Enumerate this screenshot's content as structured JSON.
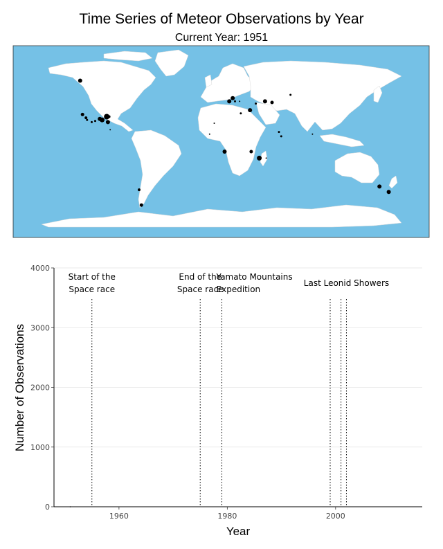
{
  "title": "Time Series of Meteor Observations by Year",
  "subtitle": "Current Year: 1951",
  "colors": {
    "ocean": "#75c1e6",
    "land": "#ffffff",
    "point": "#000000",
    "grid": "#e3e3e3"
  },
  "chart_data": [
    {
      "type": "scatter",
      "map": "world",
      "points": [
        {
          "lon": -122,
          "lat": 71,
          "size": 3
        },
        {
          "lon": -120,
          "lat": 40,
          "size": 2.5
        },
        {
          "lon": -117,
          "lat": 37,
          "size": 2
        },
        {
          "lon": -116,
          "lat": 35,
          "size": 1.5
        },
        {
          "lon": -112,
          "lat": 33,
          "size": 1.5
        },
        {
          "lon": -109,
          "lat": 34,
          "size": 1.5
        },
        {
          "lon": -105,
          "lat": 36,
          "size": 3
        },
        {
          "lon": -103,
          "lat": 35,
          "size": 3.5
        },
        {
          "lon": -99,
          "lat": 38,
          "size": 4
        },
        {
          "lon": -97,
          "lat": 38,
          "size": 2
        },
        {
          "lon": -98,
          "lat": 33,
          "size": 3
        },
        {
          "lon": -96,
          "lat": 26,
          "size": 1
        },
        {
          "lon": -71,
          "lat": -29,
          "size": 2
        },
        {
          "lon": -69,
          "lat": -43,
          "size": 2.5
        },
        {
          "lon": -10,
          "lat": 22,
          "size": 1
        },
        {
          "lon": -6,
          "lat": 32,
          "size": 1
        },
        {
          "lon": 7,
          "lat": 52,
          "size": 3
        },
        {
          "lon": 10,
          "lat": 55,
          "size": 3
        },
        {
          "lon": 12,
          "lat": 52,
          "size": 1.5
        },
        {
          "lon": 16,
          "lat": 52,
          "size": 1
        },
        {
          "lon": 17,
          "lat": 41,
          "size": 1.5
        },
        {
          "lon": 25,
          "lat": 44,
          "size": 3
        },
        {
          "lon": 30,
          "lat": 50,
          "size": 1.5
        },
        {
          "lon": 38,
          "lat": 52,
          "size": 3
        },
        {
          "lon": 44,
          "lat": 51,
          "size": 2.5
        },
        {
          "lon": 50,
          "lat": 24,
          "size": 1.5
        },
        {
          "lon": 52,
          "lat": 20,
          "size": 1.5
        },
        {
          "lon": 60,
          "lat": 58,
          "size": 1.5
        },
        {
          "lon": 79,
          "lat": 22,
          "size": 1
        },
        {
          "lon": 3,
          "lat": 6,
          "size": 3
        },
        {
          "lon": 26,
          "lat": 6,
          "size": 2.5
        },
        {
          "lon": 33,
          "lat": 0,
          "size": 3.5
        },
        {
          "lon": 39,
          "lat": 0,
          "size": 1
        },
        {
          "lon": 137,
          "lat": -26,
          "size": 3
        },
        {
          "lon": 145,
          "lat": -31,
          "size": 3
        }
      ]
    },
    {
      "type": "line",
      "xlabel": "Year",
      "ylabel": "Number of Observations",
      "xlim": [
        1948,
        2016
      ],
      "ylim": [
        0,
        4000
      ],
      "xticks": [
        1960,
        1980,
        2000
      ],
      "yticks": [
        0,
        1000,
        2000,
        3000,
        4000
      ],
      "grid": true,
      "series": [
        {
          "x": [
            1951
          ],
          "values": [
            0
          ]
        }
      ],
      "annotations": [
        {
          "x": 1955,
          "lines": [
            "Start of the",
            "Space race"
          ],
          "label_x": 1955
        },
        {
          "x": 1975,
          "lines": [
            "End of the",
            "Space race"
          ],
          "label_x": 1975
        },
        {
          "x": 1979,
          "lines": [
            "Yamato Mountains",
            "Expedition"
          ],
          "label_x": 1986,
          "anchor": "start",
          "text_x": 1979
        },
        {
          "x": 1999,
          "lines": [],
          "label_x": 1999
        },
        {
          "x": 2001,
          "lines": [],
          "label_x": 2001
        },
        {
          "x": 2002,
          "lines": [
            "Last Leonid Showers"
          ],
          "label_x": 2002
        }
      ]
    }
  ]
}
